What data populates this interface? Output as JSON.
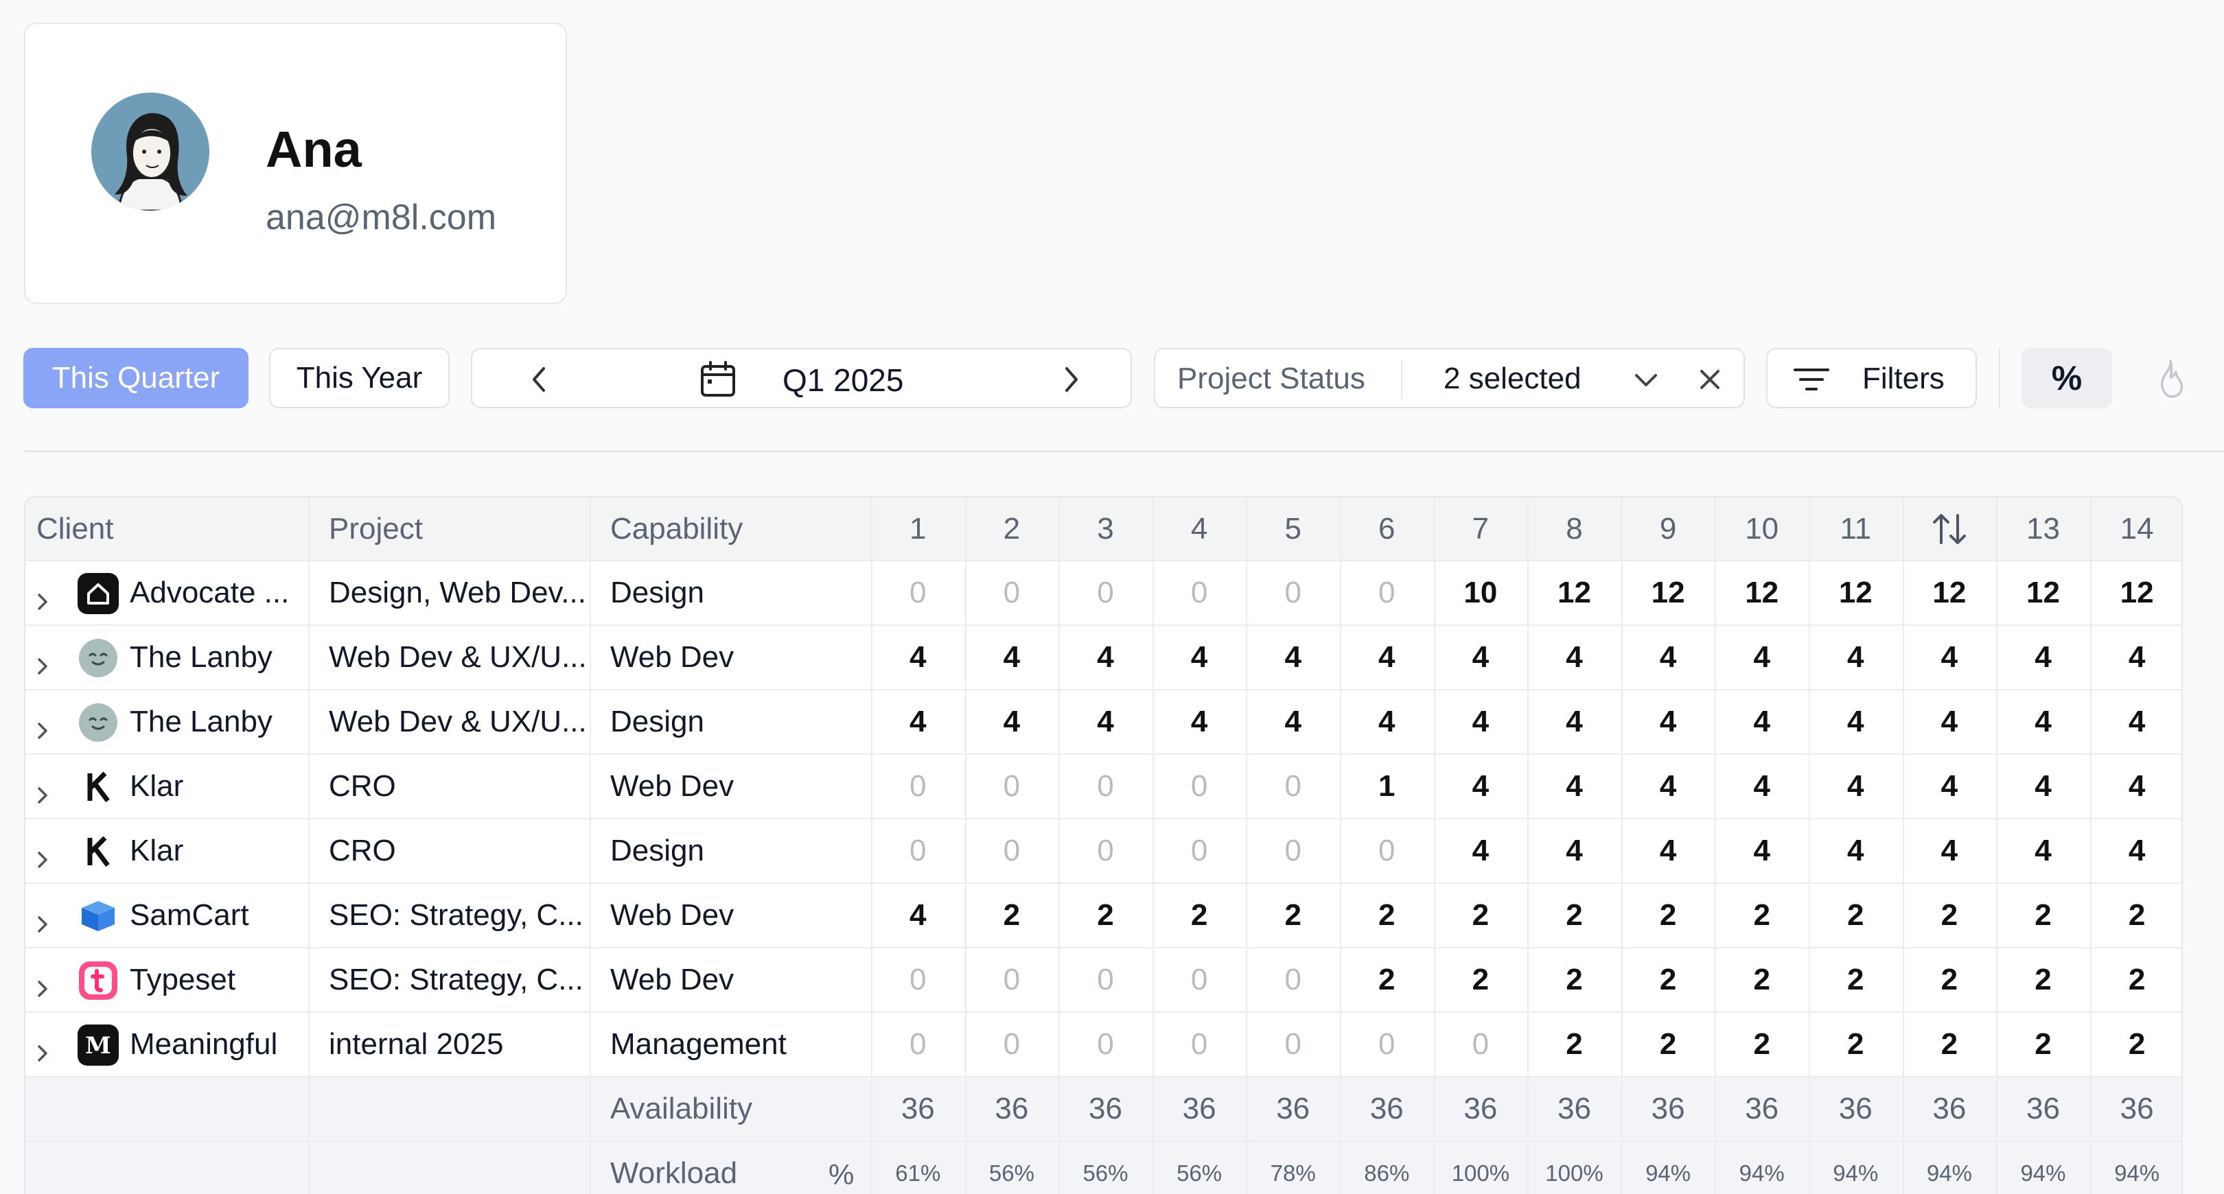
{
  "profile": {
    "name": "Ana",
    "email": "ana@m8l.com"
  },
  "toolbar": {
    "this_quarter": "This Quarter",
    "this_year": "This Year",
    "period": "Q1 2025",
    "status_label": "Project Status",
    "status_value": "2 selected",
    "filters": "Filters",
    "percent": "%"
  },
  "table": {
    "headers": {
      "client": "Client",
      "project": "Project",
      "capability": "Capability"
    },
    "weeks": [
      "1",
      "2",
      "3",
      "4",
      "5",
      "6",
      "7",
      "8",
      "9",
      "10",
      "11",
      "",
      "13",
      "14"
    ],
    "rows": [
      {
        "client": "Advocate ...",
        "icon": "advocate-icon",
        "project": "Design, Web Dev...",
        "capability": "Design",
        "values": [
          0,
          0,
          0,
          0,
          0,
          0,
          10,
          12,
          12,
          12,
          12,
          12,
          12,
          12
        ]
      },
      {
        "client": "The Lanby",
        "icon": "lanby-icon",
        "project": "Web Dev & UX/U...",
        "capability": "Web Dev",
        "values": [
          4,
          4,
          4,
          4,
          4,
          4,
          4,
          4,
          4,
          4,
          4,
          4,
          4,
          4
        ]
      },
      {
        "client": "The Lanby",
        "icon": "lanby-icon",
        "project": "Web Dev & UX/U...",
        "capability": "Design",
        "values": [
          4,
          4,
          4,
          4,
          4,
          4,
          4,
          4,
          4,
          4,
          4,
          4,
          4,
          4
        ]
      },
      {
        "client": "Klar",
        "icon": "klar-icon",
        "project": "CRO",
        "capability": "Web Dev",
        "values": [
          0,
          0,
          0,
          0,
          0,
          1,
          4,
          4,
          4,
          4,
          4,
          4,
          4,
          4
        ]
      },
      {
        "client": "Klar",
        "icon": "klar-icon",
        "project": "CRO",
        "capability": "Design",
        "values": [
          0,
          0,
          0,
          0,
          0,
          0,
          4,
          4,
          4,
          4,
          4,
          4,
          4,
          4
        ]
      },
      {
        "client": "SamCart",
        "icon": "samcart-icon",
        "project": "SEO: Strategy, C...",
        "capability": "Web Dev",
        "values": [
          4,
          2,
          2,
          2,
          2,
          2,
          2,
          2,
          2,
          2,
          2,
          2,
          2,
          2
        ]
      },
      {
        "client": "Typeset",
        "icon": "typeset-icon",
        "project": "SEO: Strategy, C...",
        "capability": "Web Dev",
        "values": [
          0,
          0,
          0,
          0,
          0,
          2,
          2,
          2,
          2,
          2,
          2,
          2,
          2,
          2
        ]
      },
      {
        "client": "Meaningful",
        "icon": "meaningful-icon",
        "project": "internal 2025",
        "capability": "Management",
        "values": [
          0,
          0,
          0,
          0,
          0,
          0,
          0,
          2,
          2,
          2,
          2,
          2,
          2,
          2
        ]
      }
    ],
    "availability": {
      "label": "Availability",
      "values": [
        36,
        36,
        36,
        36,
        36,
        36,
        36,
        36,
        36,
        36,
        36,
        36,
        36,
        36
      ]
    },
    "workload": {
      "label": "Workload",
      "pct_symbol": "%",
      "values": [
        "61%",
        "56%",
        "56%",
        "56%",
        "78%",
        "86%",
        "100%",
        "100%",
        "94%",
        "94%",
        "94%",
        "94%",
        "94%",
        "94%"
      ],
      "levels": [
        "yellow",
        "yellow",
        "yellow",
        "yellow",
        "green",
        "green",
        "green",
        "green",
        "green",
        "green",
        "green",
        "green",
        "green",
        "green"
      ]
    }
  },
  "colors": {
    "accent": "#8aa5f5",
    "warn": "#cbb11d",
    "ok": "#4aa037"
  }
}
